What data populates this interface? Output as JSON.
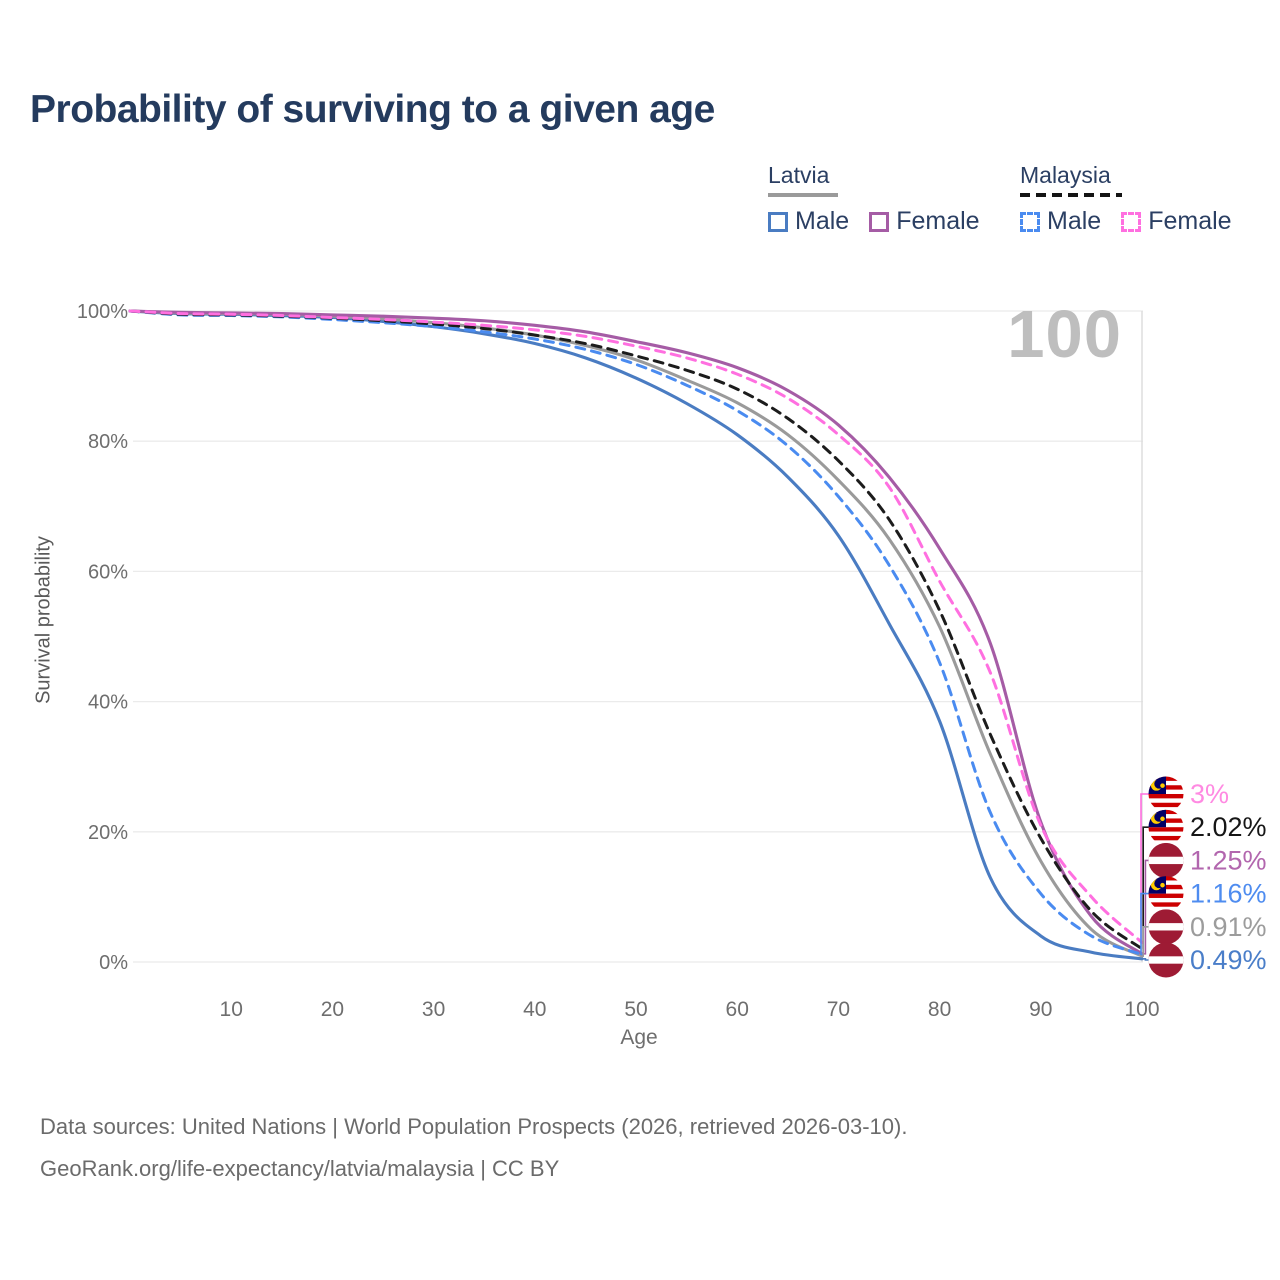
{
  "title": "Probability of surviving to a given age",
  "watermark": "100",
  "legend": {
    "groups": [
      {
        "label": "Latvia",
        "underline_style": "solid",
        "underline_color": "#9a9a9a",
        "items": [
          {
            "label": "Male",
            "color": "#4a7cc2",
            "dash": "solid"
          },
          {
            "label": "Female",
            "color": "#a55ca5",
            "dash": "solid"
          }
        ]
      },
      {
        "label": "Malaysia",
        "underline_style": "dashed",
        "underline_color": "#141414",
        "items": [
          {
            "label": "Male",
            "color": "#4a8bf0",
            "dash": "dashed"
          },
          {
            "label": "Female",
            "color": "#ff6fe0",
            "dash": "dashed"
          }
        ]
      }
    ]
  },
  "axes": {
    "y_label": "Survival probability",
    "x_label": "Age",
    "y_ticks": [
      {
        "value": 0,
        "label": "0%"
      },
      {
        "value": 20,
        "label": "20%"
      },
      {
        "value": 40,
        "label": "40%"
      },
      {
        "value": 60,
        "label": "60%"
      },
      {
        "value": 80,
        "label": "80%"
      },
      {
        "value": 100,
        "label": "100%"
      }
    ],
    "x_ticks": [
      {
        "value": 10,
        "label": "10"
      },
      {
        "value": 20,
        "label": "20"
      },
      {
        "value": 30,
        "label": "30"
      },
      {
        "value": 40,
        "label": "40"
      },
      {
        "value": 50,
        "label": "50"
      },
      {
        "value": 60,
        "label": "60"
      },
      {
        "value": 70,
        "label": "70"
      },
      {
        "value": 80,
        "label": "80"
      },
      {
        "value": 90,
        "label": "90"
      },
      {
        "value": 100,
        "label": "100"
      }
    ],
    "grid": "horizontal"
  },
  "chart_data": {
    "type": "line",
    "title": "Probability of surviving to a given age",
    "xlabel": "Age",
    "ylabel": "Survival probability",
    "xlim": [
      0,
      100
    ],
    "ylim": [
      0,
      100
    ],
    "hover_age": 100,
    "x": [
      0,
      5,
      10,
      15,
      20,
      25,
      30,
      35,
      40,
      45,
      50,
      55,
      60,
      65,
      70,
      75,
      80,
      85,
      90,
      95,
      100
    ],
    "series": [
      {
        "id": "malaysia_female",
        "name": "Malaysia Female",
        "country": "Malaysia",
        "sex": "Female",
        "color": "#ff6fe0",
        "dash": "dashed",
        "label_color": "#ff8ae2",
        "value_at_age_100": "3%",
        "values": [
          100,
          99.6,
          99.5,
          99.3,
          99.0,
          98.7,
          98.3,
          97.8,
          97.1,
          96.1,
          94.6,
          92.8,
          90.3,
          86.6,
          81.0,
          73.0,
          58.5,
          44.5,
          21.0,
          10.0,
          3.0
        ]
      },
      {
        "id": "malaysia_mean",
        "name": "Malaysia",
        "country": "Malaysia",
        "sex": "Both",
        "color": "#1c1c1c",
        "dash": "dashed",
        "label_color": "#161616",
        "value_at_age_100": "2.02%",
        "values": [
          100,
          99.5,
          99.4,
          99.2,
          98.9,
          98.5,
          98.0,
          97.3,
          96.3,
          95.0,
          93.1,
          90.9,
          88.0,
          83.5,
          77.0,
          68.0,
          54.0,
          35.0,
          19.0,
          7.8,
          2.02
        ]
      },
      {
        "id": "latvia_female",
        "name": "Latvia Female",
        "country": "Latvia",
        "sex": "Female",
        "color": "#a55ca5",
        "dash": "solid",
        "label_color": "#b266ae",
        "value_at_age_100": "1.25%",
        "values": [
          100,
          99.8,
          99.7,
          99.6,
          99.4,
          99.2,
          98.9,
          98.5,
          97.8,
          96.8,
          95.3,
          93.6,
          91.3,
          87.8,
          82.5,
          74.5,
          63.5,
          49.0,
          21.5,
          7.0,
          1.25
        ]
      },
      {
        "id": "malaysia_male",
        "name": "Malaysia Male",
        "country": "Malaysia",
        "sex": "Male",
        "color": "#4a8bf0",
        "dash": "dashed",
        "label_color": "#4e8cf0",
        "value_at_age_100": "1.16%",
        "values": [
          100,
          99.4,
          99.3,
          99.1,
          98.7,
          98.2,
          97.6,
          96.8,
          95.7,
          94.1,
          91.8,
          88.6,
          84.7,
          79.3,
          71.5,
          61.0,
          46.0,
          23.0,
          10.5,
          4.0,
          1.16
        ]
      },
      {
        "id": "latvia_mean",
        "name": "Latvia",
        "country": "Latvia",
        "sex": "Both",
        "color": "#9a9a9a",
        "dash": "solid",
        "label_color": "#9c9c9c",
        "value_at_age_100": "0.91%",
        "values": [
          100,
          99.7,
          99.6,
          99.5,
          99.2,
          98.8,
          98.2,
          97.4,
          96.3,
          94.7,
          92.5,
          89.4,
          85.9,
          81.0,
          74.0,
          65.0,
          51.5,
          32.0,
          15.5,
          5.0,
          0.91
        ]
      },
      {
        "id": "latvia_male",
        "name": "Latvia Male",
        "country": "Latvia",
        "sex": "Male",
        "color": "#4a7cc2",
        "dash": "solid",
        "label_color": "#4a7ec9",
        "value_at_age_100": "0.49%",
        "values": [
          100,
          99.6,
          99.5,
          99.3,
          99.0,
          98.4,
          97.6,
          96.5,
          95.0,
          92.8,
          89.7,
          85.8,
          81.0,
          74.5,
          65.5,
          52.0,
          37.0,
          13.0,
          4.0,
          1.5,
          0.49
        ]
      }
    ]
  },
  "flag_colors": {
    "latvia_red": "#9E1B34",
    "latvia_white": "#FFFFFF",
    "malaysia_red": "#CC0001",
    "malaysia_white": "#FFFFFF",
    "malaysia_blue": "#010066",
    "malaysia_yellow": "#FFCC00"
  },
  "footer": {
    "line1": "Data sources: United Nations | World Population Prospects (2026, retrieved 2026-03-10).",
    "line2": "GeoRank.org/life-expectancy/latvia/malaysia | CC BY"
  }
}
